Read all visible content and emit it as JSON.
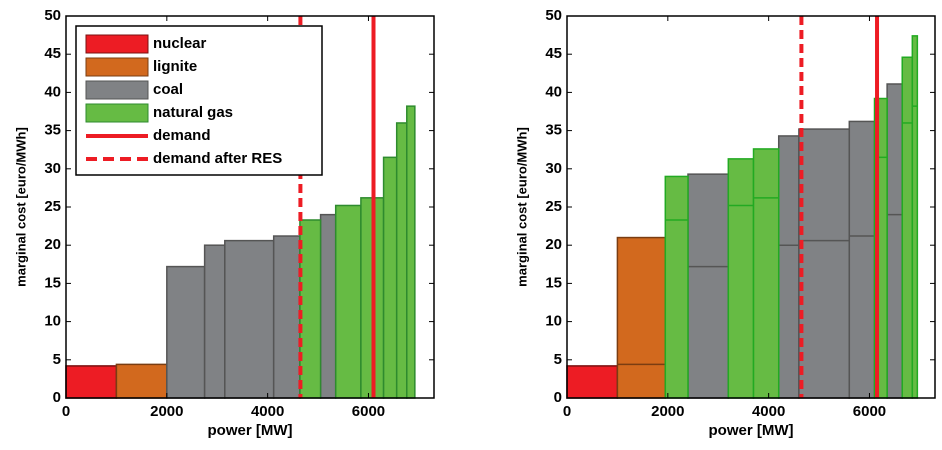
{
  "chart_data": [
    {
      "type": "bar",
      "xlabel": "power [MW]",
      "ylabel": "marginal cost [euro/MWh]",
      "xlim": [
        0,
        7300
      ],
      "ylim": [
        0,
        50
      ],
      "xticks": [
        0,
        2000,
        4000,
        6000
      ],
      "yticks": [
        0,
        5,
        10,
        15,
        20,
        25,
        30,
        35,
        40,
        45,
        50
      ],
      "legend": "upper left",
      "series": [
        {
          "name": "nuclear",
          "color": "#ed1c24",
          "edge": "#7a1010",
          "x": [
            [
              0,
              1000
            ]
          ],
          "values": [
            4.2
          ]
        },
        {
          "name": "lignite",
          "color": "#d2691e",
          "edge": "#7a3d12",
          "x": [
            [
              1000,
              2000
            ]
          ],
          "values": [
            4.4
          ]
        },
        {
          "name": "coal",
          "color": "#808285",
          "edge": "#555555",
          "x": [
            [
              2000,
              2750
            ],
            [
              2750,
              3150
            ],
            [
              3150,
              4120
            ],
            [
              4120,
              4640
            ],
            [
              5050,
              5350
            ]
          ],
          "values": [
            17.2,
            20,
            20.6,
            21.2,
            24
          ]
        },
        {
          "name": "natural gas",
          "color": "#66bb44",
          "edge": "#2e8b2e",
          "x": [
            [
              4640,
              5050
            ],
            [
              5350,
              5850
            ],
            [
              5850,
              6300
            ],
            [
              6300,
              6560
            ],
            [
              6560,
              6760
            ],
            [
              6760,
              6920
            ]
          ],
          "values": [
            23.3,
            25.2,
            26.2,
            31.5,
            36,
            38.2
          ]
        }
      ],
      "lines": [
        {
          "name": "demand",
          "color": "#ed1c24",
          "style": "solid",
          "x": 6100
        },
        {
          "name": "demand after RES",
          "color": "#ed1c24",
          "style": "dashed",
          "x": 4650
        }
      ]
    },
    {
      "type": "bar",
      "xlabel": "power [MW]",
      "ylabel": "marginal cost [euro/MWh]",
      "xlim": [
        0,
        7300
      ],
      "ylim": [
        0,
        50
      ],
      "xticks": [
        0,
        2000,
        4000,
        6000
      ],
      "yticks": [
        0,
        5,
        10,
        15,
        20,
        25,
        30,
        35,
        40,
        45,
        50
      ],
      "series": [
        {
          "color": "#ed1c24",
          "edge": "#7a1010",
          "x": [
            [
              0,
              1000
            ]
          ],
          "values": [
            4.2
          ]
        },
        {
          "color": "#d2691e",
          "edge": "#7a3d12",
          "x": [
            [
              1000,
              1950
            ]
          ],
          "values": [
            21
          ],
          "levels": [
            4.4
          ]
        },
        {
          "color": "#808285",
          "edge": "#555555",
          "x": [
            [
              2400,
              3200
            ],
            [
              4200,
              4600
            ],
            [
              4600,
              5600
            ],
            [
              5600,
              6100
            ],
            [
              6350,
              6650
            ]
          ],
          "values": [
            29.3,
            34.3,
            35.2,
            36.2,
            41.1
          ],
          "levels": [
            17.2,
            20,
            20.6,
            21.2,
            24
          ]
        },
        {
          "color": "#66bb44",
          "edge": "#22aa22",
          "x": [
            [
              1950,
              2400
            ],
            [
              3200,
              3700
            ],
            [
              3700,
              4200
            ],
            [
              6100,
              6350
            ],
            [
              6650,
              6850
            ],
            [
              6850,
              6950
            ]
          ],
          "values": [
            29,
            31.3,
            32.6,
            39.2,
            44.6,
            47.4
          ],
          "levels": [
            23.3,
            25.2,
            26.2,
            31.5,
            36,
            38.2
          ]
        }
      ],
      "lines": [
        {
          "color": "#ed1c24",
          "style": "solid",
          "x": 6150
        },
        {
          "color": "#ed1c24",
          "style": "dashed",
          "x": 4650
        }
      ]
    }
  ]
}
